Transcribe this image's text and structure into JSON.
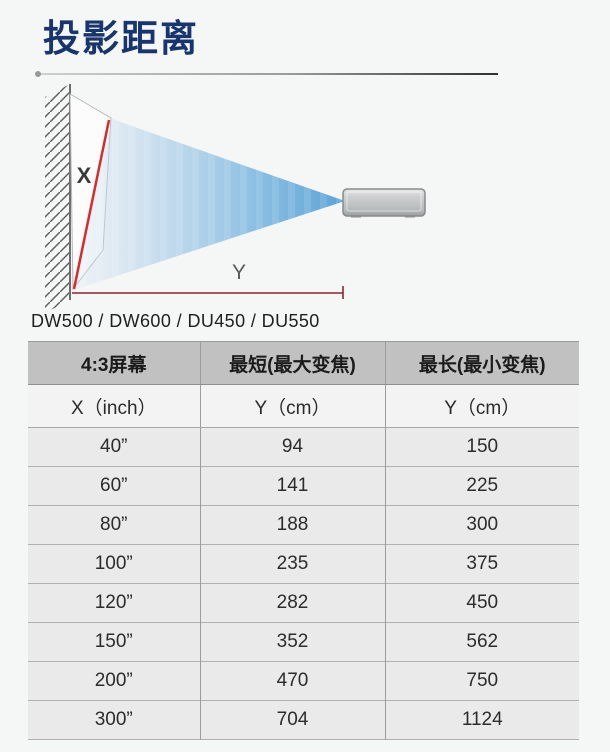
{
  "header": {
    "title": "投影距离"
  },
  "models": {
    "label": "DW500 / DW600 / DU450 / DU550"
  },
  "diagram": {
    "screen_label": "X",
    "distance_label": "Y"
  },
  "table": {
    "headers": [
      "4:3屏幕",
      "最短(最大变焦)",
      "最长(最小变焦)"
    ],
    "subheaders": [
      "X（inch）",
      "Y（cm）",
      "Y（cm）"
    ],
    "rows": [
      [
        "40”",
        "94",
        "150"
      ],
      [
        "60”",
        "141",
        "225"
      ],
      [
        "80”",
        "188",
        "300"
      ],
      [
        "100”",
        "235",
        "375"
      ],
      [
        "120”",
        "282",
        "450"
      ],
      [
        "150”",
        "352",
        "562"
      ],
      [
        "200”",
        "470",
        "750"
      ],
      [
        "300”",
        "704",
        "1124"
      ]
    ]
  },
  "colors": {
    "title_navy": "#18356e",
    "beam_blue": "#4f9cd4",
    "dimension_red": "#8e2434",
    "screen_diagonal_red": "#d92b2b",
    "table_header_gray": "#c1c1c1"
  }
}
